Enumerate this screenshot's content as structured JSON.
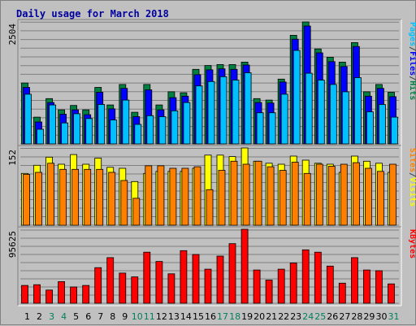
{
  "chart_data": {
    "type": "bar",
    "title": "Daily usage for March 2018",
    "days": [
      "1",
      "2",
      "3",
      "4",
      "5",
      "6",
      "7",
      "8",
      "9",
      "10",
      "11",
      "12",
      "13",
      "14",
      "15",
      "16",
      "17",
      "18",
      "19",
      "20",
      "21",
      "22",
      "23",
      "24",
      "25",
      "26",
      "27",
      "28",
      "29",
      "30",
      "31"
    ],
    "weekend_days": [
      "3",
      "4",
      "10",
      "11",
      "17",
      "18",
      "24",
      "25",
      "31"
    ],
    "panels": [
      {
        "id": "requests",
        "max_label": "2504",
        "ymax": 2504,
        "legend": [
          {
            "text": "Pages",
            "color": "#00c0ff"
          },
          {
            "text": "/",
            "color": "#404040"
          },
          {
            "text": "Files",
            "color": "#0000ff"
          },
          {
            "text": "/",
            "color": "#404040"
          },
          {
            "text": "Hits",
            "color": "#008040"
          }
        ],
        "series": [
          {
            "name": "Hits",
            "color": "#008040",
            "values": [
              1250,
              550,
              930,
              700,
              790,
              700,
              1160,
              800,
              1220,
              650,
              1220,
              800,
              1070,
              1050,
              1530,
              1610,
              1630,
              1630,
              1680,
              930,
              900,
              1330,
              2230,
              2504,
              1950,
              1780,
              1680,
              2080,
              1070,
              1220,
              1060
            ]
          },
          {
            "name": "Files",
            "color": "#0000ff",
            "values": [
              1160,
              450,
              850,
              610,
              700,
              600,
              1060,
              720,
              1140,
              560,
              1110,
              700,
              950,
              980,
              1420,
              1520,
              1540,
              1530,
              1620,
              850,
              840,
              1270,
              2150,
              2420,
              1870,
              1690,
              1590,
              2000,
              980,
              1140,
              970
            ]
          },
          {
            "name": "Pages",
            "color": "#00c0ff",
            "values": [
              1020,
              300,
              800,
              430,
              620,
              520,
              810,
              490,
              900,
              400,
              580,
              560,
              680,
              850,
              1190,
              1280,
              1380,
              1310,
              1460,
              640,
              640,
              1020,
              1920,
              1450,
              1310,
              1220,
              1070,
              1360,
              660,
              810,
              550
            ]
          }
        ]
      },
      {
        "id": "visits",
        "max_label": "152",
        "ymax": 152,
        "legend": [
          {
            "text": "Sites",
            "color": "#ff8000"
          },
          {
            "text": "/",
            "color": "#404040"
          },
          {
            "text": "Visits",
            "color": "#ffff00"
          }
        ],
        "series": [
          {
            "name": "Visits",
            "color": "#ffff00",
            "values": [
              102,
              118,
              134,
              120,
              139,
              120,
              132,
              114,
              112,
              86,
              102,
              106,
              106,
              106,
              112,
              138,
              138,
              135,
              152,
              126,
              122,
              120,
              136,
              128,
              122,
              120,
              104,
              136,
              126,
              122,
              104
            ]
          },
          {
            "name": "Sites",
            "color": "#ff8000",
            "values": [
              100,
              104,
              122,
              110,
              110,
              110,
              110,
              104,
              88,
              53,
              117,
              117,
              112,
              112,
              115,
              70,
              108,
              126,
              120,
              126,
              115,
              108,
              124,
              102,
              120,
              116,
              120,
              123,
              112,
              106,
              120
            ]
          }
        ]
      },
      {
        "id": "kbytes",
        "max_label": "95625",
        "ymax": 95625,
        "legend": [
          {
            "text": "KBytes",
            "color": "#ff0000"
          }
        ],
        "series": [
          {
            "name": "KBytes",
            "color": "#ff0000",
            "values": [
              23000,
              24000,
              17000,
              28000,
              21000,
              23000,
              46000,
              59000,
              39000,
              34000,
              66000,
              54000,
              38000,
              68000,
              63000,
              44000,
              61000,
              77000,
              95625,
              43000,
              30000,
              44000,
              52000,
              69000,
              66000,
              48000,
              26000,
              59000,
              43000,
              42000,
              25000
            ]
          }
        ]
      }
    ]
  }
}
